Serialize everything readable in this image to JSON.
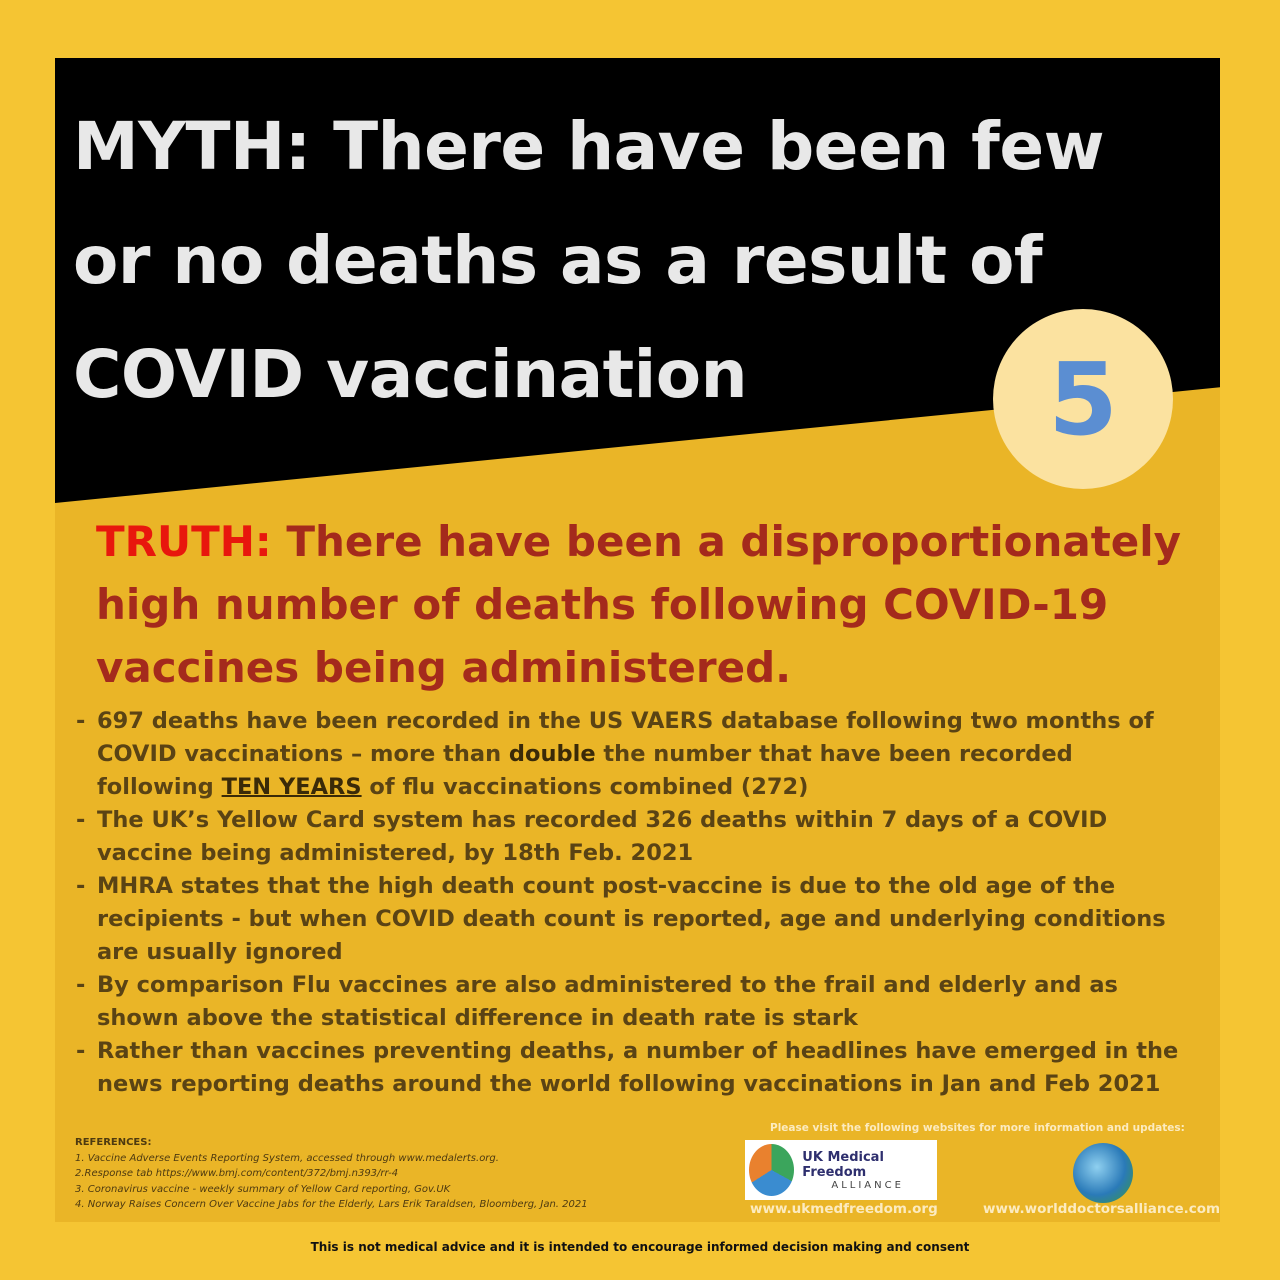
{
  "myth": {
    "title": "MYTH: There have been few or no deaths as a result of COVID vaccination",
    "number": "5"
  },
  "truth": {
    "label": "TRUTH:",
    "text": " There have been a disproportionately high number of deaths following COVID-19 vaccines being administered."
  },
  "bullets": [
    {
      "pre": "697 deaths have been recorded in the US VAERS database following two months of COVID vaccinations – more than ",
      "bold": "double",
      "mid": " the number that have been recorded following ",
      "underlined": "TEN YEARS",
      "post": " of flu vaccinations combined (272)"
    },
    {
      "text": "The UK’s Yellow Card system has recorded 326 deaths within 7 days of a COVID vaccine being administered, by 18th Feb. 2021"
    },
    {
      "text": "MHRA states that the high death count post-vaccine is due to the old age of the recipients - but when COVID death count is reported, age and underlying conditions are usually ignored"
    },
    {
      "text": "By comparison Flu vaccines are also administered to the frail and elderly and as shown above the statistical difference in death rate is stark"
    },
    {
      "text": "Rather than vaccines preventing deaths, a number of headlines have emerged in the news reporting deaths around the world following vaccinations in Jan and Feb 2021"
    }
  ],
  "references": {
    "heading": "REFERENCES:",
    "items": [
      "1. Vaccine Adverse Events Reporting System, accessed through www.medalerts.org.",
      "2.Response tab https://www.bmj.com/content/372/bmj.n393/rr-4",
      "3. Coronavirus vaccine - weekly summary of Yellow Card reporting, Gov.UK",
      "4. Norway Raises Concern Over Vaccine Jabs for the Elderly, Lars Erik Taraldsen, Bloomberg, Jan. 2021"
    ]
  },
  "footer": {
    "visit": "Please visit the following websites for more information and updates:",
    "ukmfa_name": "UK Medical Freedom",
    "ukmfa_sub": "ALLIANCE",
    "url1": "www.ukmedfreedom.org",
    "url2": "www.worlddoctorsalliance.com",
    "disclaimer": "This is not medical advice and it is intended to encourage informed decision making and consent"
  },
  "colors": {
    "outer": "#F5C533",
    "panel": "#EAB527",
    "header": "#000000",
    "truth_label": "#E8170D",
    "truth_text": "#A42A1C",
    "badge_bg": "#FBE2A0",
    "badge_num": "#5B8ED2"
  }
}
